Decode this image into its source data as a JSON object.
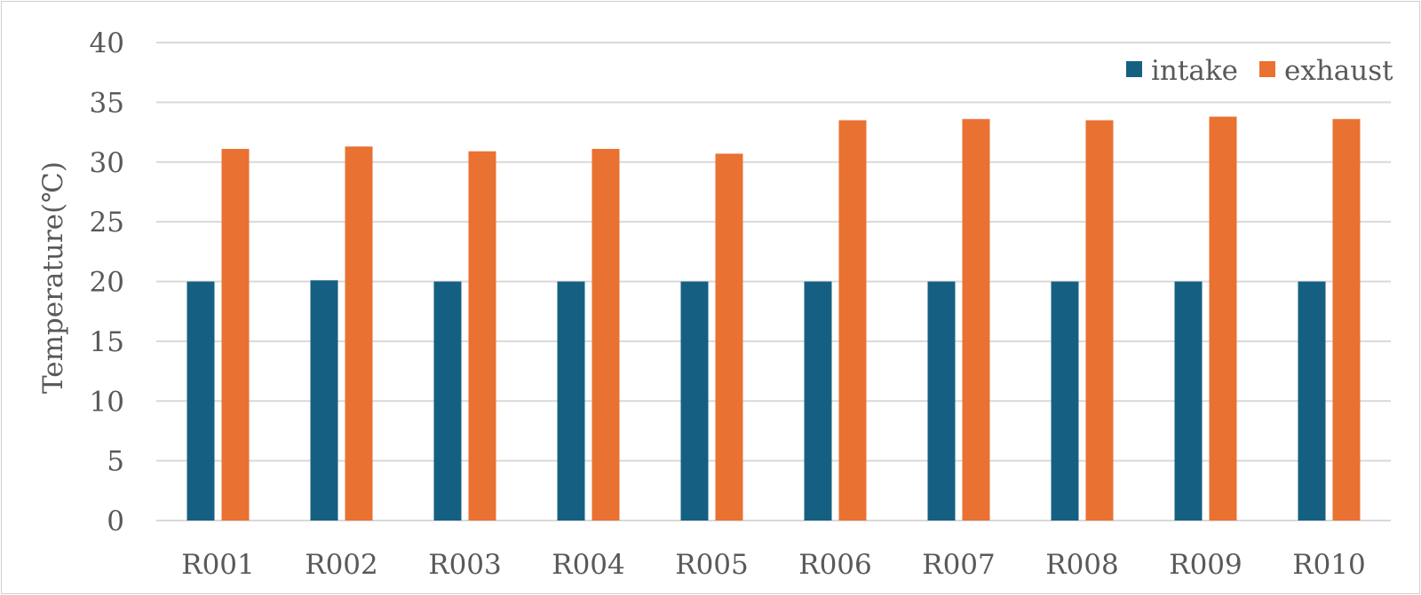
{
  "chart_data": {
    "type": "bar",
    "title": "",
    "xlabel": "",
    "ylabel": "Temperature(℃)",
    "ylim": [
      0,
      40
    ],
    "yticks": [
      "0",
      "5",
      "10",
      "15",
      "20",
      "25",
      "30",
      "35",
      "40"
    ],
    "grid": true,
    "legend_position": "top-right",
    "categories": [
      "R001",
      "R002",
      "R003",
      "R004",
      "R005",
      "R006",
      "R007",
      "R008",
      "R009",
      "R010"
    ],
    "series": [
      {
        "name": "intake",
        "color": "#156082",
        "values": [
          20.0,
          20.1,
          20.0,
          20.0,
          20.0,
          20.0,
          20.0,
          20.0,
          20.0,
          20.0
        ]
      },
      {
        "name": "exhaust",
        "color": "#E97132",
        "values": [
          31.1,
          31.3,
          30.9,
          31.1,
          30.7,
          33.5,
          33.6,
          33.5,
          33.8,
          33.6
        ]
      }
    ]
  }
}
